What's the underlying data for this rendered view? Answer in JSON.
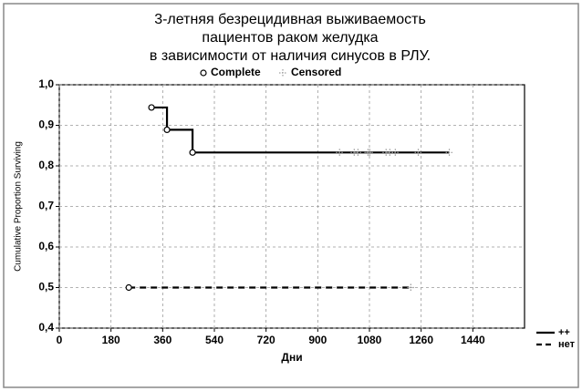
{
  "chart_data": {
    "type": "survival-step",
    "title": [
      "3-летняя безрецидивная выживаемость",
      "пациентов раком желудка",
      "в зависимости от наличия синусов в РЛУ."
    ],
    "marker_legend": [
      "Complete",
      "Censored"
    ],
    "x_label": "Дни",
    "y_label": "Cumulative Proportion Surviving",
    "xlim": [
      0,
      1620
    ],
    "xticks": [
      0,
      180,
      360,
      540,
      720,
      900,
      1080,
      1260,
      1440
    ],
    "ylim": [
      0.4,
      1.0
    ],
    "yticks": [
      {
        "value": 0.4,
        "label": "0,4"
      },
      {
        "value": 0.5,
        "label": "0,5"
      },
      {
        "value": 0.6,
        "label": "0,6"
      },
      {
        "value": 0.7,
        "label": "0,7"
      },
      {
        "value": 0.8,
        "label": "0,8"
      },
      {
        "value": 0.9,
        "label": "0,9"
      },
      {
        "value": 1.0,
        "label": "1,0"
      }
    ],
    "grid": true,
    "series": [
      {
        "name": "++",
        "color": "#000000",
        "dashed": false,
        "x": [
          321,
          375,
          464,
          1358
        ],
        "values": [
          0.944,
          0.889,
          0.833,
          0.833
        ],
        "censored": {
          "x": [
            976,
            1027,
            1040,
            1075,
            1081,
            1138,
            1151,
            1170,
            1250,
            1358
          ],
          "values": [
            0.833,
            0.833,
            0.833,
            0.833,
            0.833,
            0.833,
            0.833,
            0.833,
            0.833,
            0.833
          ]
        }
      },
      {
        "name": "нет",
        "color": "#000000",
        "dashed": true,
        "x": [
          242,
          1224
        ],
        "values": [
          0.5,
          0.5
        ],
        "censored": {
          "x": [
            1224
          ],
          "values": [
            0.5
          ]
        }
      }
    ]
  }
}
